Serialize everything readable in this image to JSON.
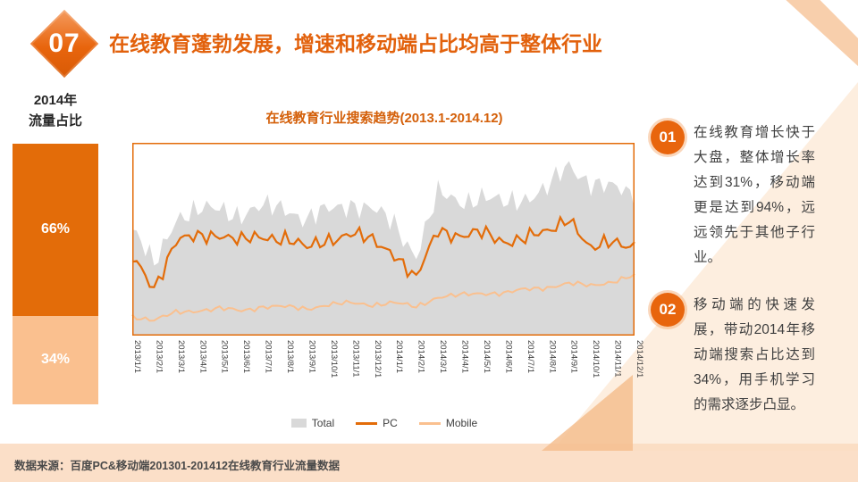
{
  "slide": {
    "number": "07",
    "title": "在线教育蓬勃发展，增速和移动端占比均高于整体行业",
    "source": "数据来源：百度PC&移动端201301-201412在线教育行业流量数据"
  },
  "traffic_share": {
    "label_line1": "2014年",
    "label_line2": "流量占比",
    "segments": [
      {
        "label": "66%",
        "value": 66,
        "color": "#E36C09"
      },
      {
        "label": "34%",
        "value": 34,
        "color": "#FAC08F"
      }
    ]
  },
  "chart_data": {
    "type": "area",
    "title": "在线教育行业搜索趋势(2013.1-2014.12)",
    "x": [
      "2013/1/1",
      "2013/2/1",
      "2013/3/1",
      "2013/4/1",
      "2013/5/1",
      "2013/6/1",
      "2013/7/1",
      "2013/8/1",
      "2013/9/1",
      "2013/10/1",
      "2013/11/1",
      "2013/12/1",
      "2014/1/1",
      "2014/2/1",
      "2014/3/1",
      "2014/4/1",
      "2014/5/1",
      "2014/6/1",
      "2014/7/1",
      "2014/8/1",
      "2014/9/1",
      "2014/10/1",
      "2014/11/1",
      "2014/12/1"
    ],
    "series": [
      {
        "name": "Total",
        "type": "area",
        "color": "#D9D9D9",
        "values": [
          55,
          36,
          62,
          64,
          66,
          63,
          66,
          67,
          60,
          65,
          69,
          65,
          58,
          42,
          73,
          70,
          72,
          68,
          72,
          76,
          88,
          80,
          76,
          73
        ]
      },
      {
        "name": "PC",
        "type": "line",
        "color": "#E36C09",
        "values": [
          40,
          25,
          49,
          51,
          53,
          49,
          51,
          51,
          45,
          50,
          53,
          49,
          43,
          29,
          55,
          52,
          53,
          49,
          51,
          53,
          62,
          44,
          49,
          47
        ]
      },
      {
        "name": "Mobile",
        "type": "line",
        "color": "#FAC08F",
        "values": [
          10,
          8,
          12,
          13,
          14,
          13,
          15,
          15,
          14,
          16,
          17,
          16,
          17,
          15,
          20,
          21,
          22,
          22,
          24,
          25,
          27,
          26,
          28,
          31
        ]
      }
    ],
    "ylim": [
      0,
      100
    ],
    "grid": false,
    "legend_position": "bottom"
  },
  "notes": [
    {
      "number": "01",
      "text": "在线教育增长快于大盘，整体增长率达到31%，移动端更是达到94%，远远领先于其他子行业。"
    },
    {
      "number": "02",
      "text": "移动端的快速发展，带动2014年移动端搜索占比达到34%，用手机学习的需求逐步凸显。"
    }
  ],
  "colors": {
    "accent": "#E36C09",
    "accent_light": "#FAC08F",
    "total_gray": "#D9D9D9",
    "strip": "#FBDFC8",
    "title": "#E2610C"
  }
}
